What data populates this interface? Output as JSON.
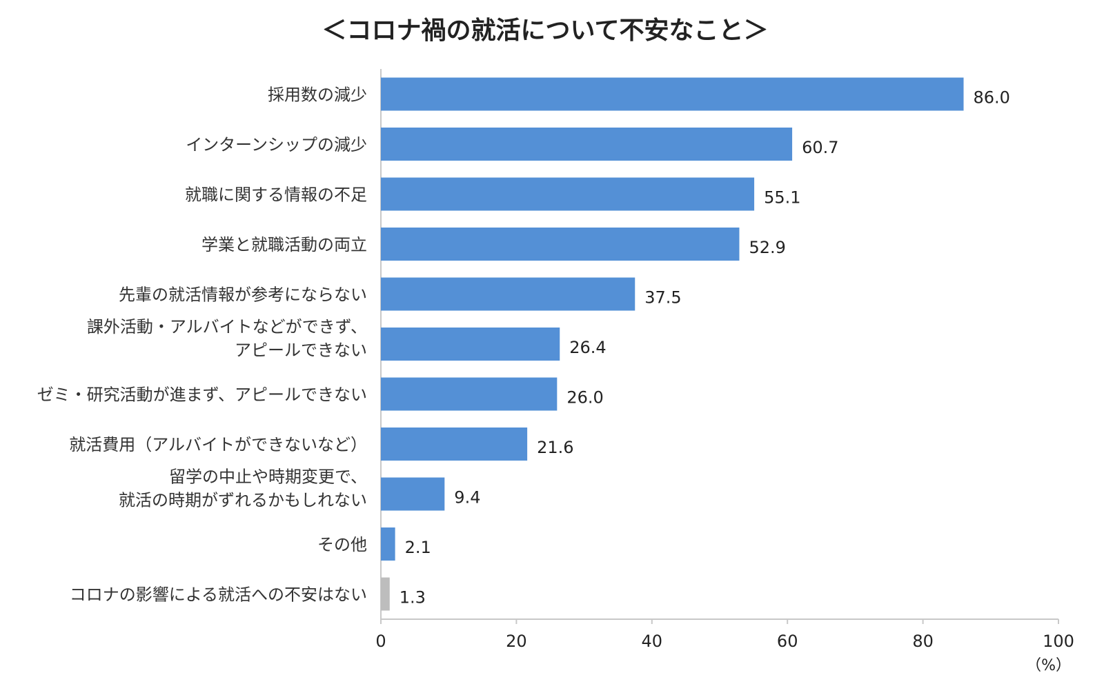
{
  "chart_data": {
    "type": "bar",
    "orientation": "horizontal",
    "title": "＜コロナ禍の就活について不安なこと＞",
    "categories": [
      [
        "採用数の減少"
      ],
      [
        "インターンシップの減少"
      ],
      [
        "就職に関する情報の不足"
      ],
      [
        "学業と就職活動の両立"
      ],
      [
        "先輩の就活情報が参考にならない"
      ],
      [
        "課外活動・アルバイトなどができず、",
        "アピールできない"
      ],
      [
        "ゼミ・研究活動が進まず、アピールできない"
      ],
      [
        "就活費用（アルバイトができないなど）"
      ],
      [
        "留学の中止や時期変更で、",
        "就活の時期がずれるかもしれない"
      ],
      [
        "その他"
      ],
      [
        "コロナの影響による就活への不安はない"
      ]
    ],
    "values": [
      86.0,
      60.7,
      55.1,
      52.9,
      37.5,
      26.4,
      26.0,
      21.6,
      9.4,
      2.1,
      1.3
    ],
    "value_labels": [
      "86.0",
      "60.7",
      "55.1",
      "52.9",
      "37.5",
      "26.4",
      "26.0",
      "21.6",
      "9.4",
      "2.1",
      "1.3"
    ],
    "xlim": [
      0,
      100
    ],
    "xticks": [
      0,
      20,
      40,
      60,
      80,
      100
    ],
    "x_unit": "（%）",
    "grid": false,
    "colors": {
      "bar": "#5490d6",
      "last_bar": "#bdbdbd",
      "axis": "#c8c8c8"
    }
  }
}
